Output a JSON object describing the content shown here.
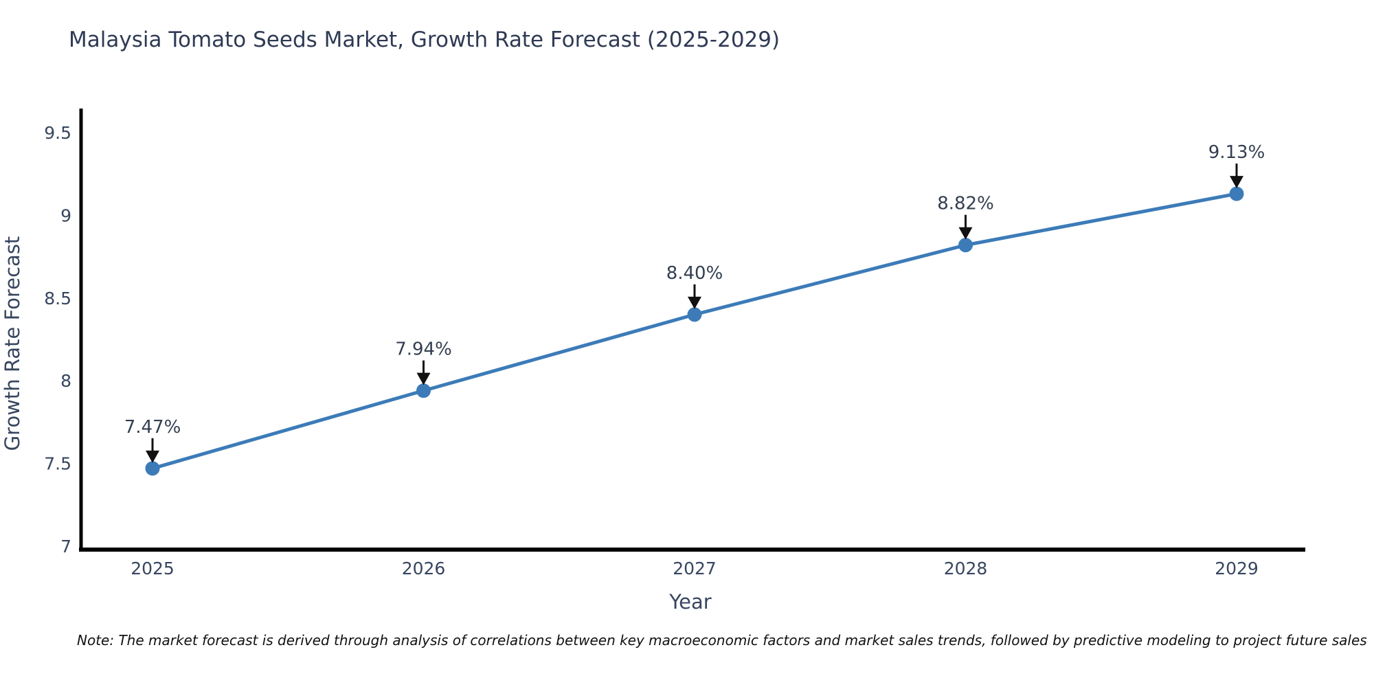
{
  "page": {
    "note": "Note: The market forecast is derived through analysis of correlations between key macroeconomic factors and market sales trends, followed by predictive modeling to project future sales"
  },
  "colors": {
    "line": "#3c7bb8",
    "marker": "#3c7bb8",
    "axis": "#000000",
    "tick_label": "#37465f",
    "axis_title": "#37465f",
    "title": "#2f3a54",
    "annotation_text": "#333f50",
    "arrow": "#111111",
    "background": "#ffffff"
  },
  "chart_data": {
    "type": "line",
    "title": "Malaysia Tomato Seeds Market, Growth Rate Forecast (2025-2029)",
    "xlabel": "Year",
    "ylabel": "Growth Rate Forecast",
    "categories": [
      "2025",
      "2026",
      "2027",
      "2028",
      "2029"
    ],
    "values": [
      7.47,
      7.94,
      8.4,
      8.82,
      9.13
    ],
    "point_labels": [
      "7.47%",
      "7.94%",
      "8.40%",
      "8.82%",
      "9.13%"
    ],
    "ylim": [
      7,
      9.5
    ],
    "yticks": [
      7,
      7.5,
      8,
      8.5,
      9,
      9.5
    ],
    "ytick_labels": [
      "7",
      "7.5",
      "8",
      "8.5",
      "9",
      "9.5"
    ],
    "grid": false,
    "legend": "none",
    "marker_style": "circle",
    "annotation_arrows": true
  }
}
